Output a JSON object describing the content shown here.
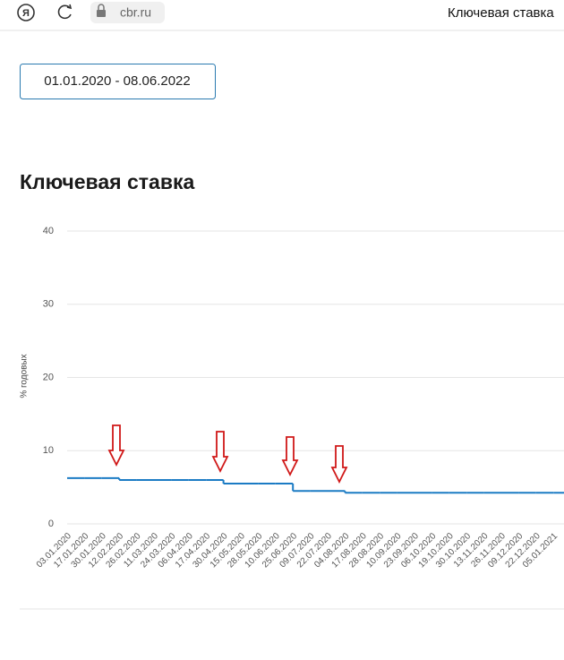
{
  "browser": {
    "url": "cbr.ru",
    "tab_title": "Ключевая ставка"
  },
  "date_range": "01.01.2020 - 08.06.2022",
  "chart_data": {
    "type": "line",
    "title": "Ключевая ставка",
    "y_label": "% годовых",
    "categories": [
      "03.01.2020",
      "17.01.2020",
      "30.01.2020",
      "12.02.2020",
      "26.02.2020",
      "11.03.2020",
      "24.03.2020",
      "06.04.2020",
      "17.04.2020",
      "30.04.2020",
      "15.05.2020",
      "28.05.2020",
      "10.06.2020",
      "25.06.2020",
      "09.07.2020",
      "22.07.2020",
      "04.08.2020",
      "17.08.2020",
      "28.08.2020",
      "10.09.2020",
      "23.09.2020",
      "06.10.2020",
      "19.10.2020",
      "30.10.2020",
      "13.11.2020",
      "26.11.2020",
      "09.12.2020",
      "22.12.2020",
      "05.01.2021"
    ],
    "series": [
      {
        "name": "Ключевая ставка",
        "color": "#1b7bc4",
        "values": [
          6.25,
          6.25,
          6.25,
          6,
          6,
          6,
          6,
          6,
          6,
          5.5,
          5.5,
          5.5,
          5.5,
          4.5,
          4.5,
          4.5,
          4.25,
          4.25,
          4.25,
          4.25,
          4.25,
          4.25,
          4.25,
          4.25,
          4.25,
          4.25,
          4.25,
          4.25,
          4.25
        ]
      }
    ],
    "ylim": [
      0,
      40
    ],
    "yticks": [
      0,
      10,
      20,
      30,
      40
    ],
    "grid": true
  }
}
